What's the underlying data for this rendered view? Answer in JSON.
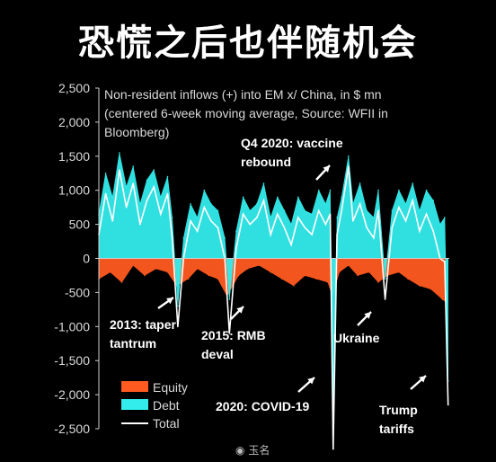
{
  "headline": "恐慌之后也伴随机会",
  "watermark": "玉名",
  "chart_data": {
    "type": "area",
    "title": "Non-resident inflows (+) into EM x/ China, in $ mn",
    "subtitle_lines": [
      "(centered 6-week moving average, Source: WFII in",
      "Bloomberg)"
    ],
    "ylim": [
      -2500,
      2500
    ],
    "yticks": [
      -2500,
      -2000,
      -1500,
      -1000,
      -500,
      0,
      500,
      1000,
      1500,
      2000,
      2500
    ],
    "ytick_labels": [
      "-2,500",
      "-2,000",
      "-1,500",
      "-1,000",
      "-500",
      "0",
      "500",
      "1,000",
      "1,500",
      "2,000",
      "2,500"
    ],
    "grid": false,
    "legend_placement": "bottom-left",
    "series": [
      {
        "name": "Equity",
        "color": "#ff5a1f",
        "kind": "area",
        "x": [
          2010.0,
          2010.5,
          2011.0,
          2011.5,
          2012.0,
          2012.5,
          2013.0,
          2013.4,
          2013.9,
          2014.3,
          2014.8,
          2015.2,
          2015.6,
          2016.1,
          2016.5,
          2017.0,
          2017.5,
          2018.0,
          2018.5,
          2019.0,
          2019.5,
          2020.0,
          2020.2,
          2020.5,
          2020.9,
          2021.3,
          2021.8,
          2022.2,
          2022.6,
          2023.1,
          2023.5,
          2024.0,
          2024.5,
          2025.0,
          2025.2
        ],
        "values": [
          -300,
          -200,
          -350,
          -100,
          -250,
          -150,
          -200,
          -400,
          -300,
          -150,
          -250,
          -300,
          -550,
          -250,
          -150,
          -100,
          -200,
          -300,
          -400,
          -250,
          -300,
          -350,
          -550,
          -200,
          -100,
          -250,
          -200,
          -350,
          -250,
          -200,
          -300,
          -400,
          -450,
          -600,
          -650
        ]
      },
      {
        "name": "Debt",
        "color": "#33ecec",
        "kind": "area",
        "x": [
          2010.0,
          2010.3,
          2010.6,
          2010.9,
          2011.2,
          2011.5,
          2011.8,
          2012.1,
          2012.4,
          2012.7,
          2013.0,
          2013.2,
          2013.45,
          2013.7,
          2014.0,
          2014.3,
          2014.6,
          2014.9,
          2015.2,
          2015.5,
          2015.7,
          2016.0,
          2016.3,
          2016.6,
          2016.9,
          2017.2,
          2017.5,
          2017.8,
          2018.1,
          2018.4,
          2018.7,
          2019.0,
          2019.3,
          2019.6,
          2019.9,
          2020.1,
          2020.23,
          2020.4,
          2020.6,
          2020.9,
          2021.1,
          2021.4,
          2021.7,
          2022.0,
          2022.2,
          2022.5,
          2022.8,
          2023.1,
          2023.4,
          2023.7,
          2024.0,
          2024.3,
          2024.6,
          2024.9,
          2025.1,
          2025.25
        ],
        "values": [
          650,
          1250,
          900,
          1550,
          1050,
          1350,
          800,
          1150,
          1300,
          900,
          1200,
          600,
          -700,
          300,
          800,
          600,
          1000,
          800,
          700,
          300,
          -600,
          400,
          900,
          700,
          800,
          1100,
          600,
          900,
          700,
          500,
          900,
          700,
          650,
          1000,
          800,
          1000,
          -2450,
          600,
          900,
          1500,
          800,
          1100,
          700,
          600,
          1000,
          -300,
          700,
          1000,
          800,
          1100,
          700,
          1000,
          850,
          500,
          600,
          -1800
        ]
      },
      {
        "name": "Total",
        "color": "#ffffff",
        "kind": "line",
        "x": [
          2010.0,
          2010.3,
          2010.6,
          2010.9,
          2011.2,
          2011.5,
          2011.8,
          2012.1,
          2012.4,
          2012.7,
          2013.0,
          2013.2,
          2013.45,
          2013.7,
          2014.0,
          2014.3,
          2014.6,
          2014.9,
          2015.2,
          2015.5,
          2015.7,
          2016.0,
          2016.3,
          2016.6,
          2016.9,
          2017.2,
          2017.5,
          2017.8,
          2018.1,
          2018.4,
          2018.7,
          2019.0,
          2019.3,
          2019.6,
          2019.9,
          2020.1,
          2020.23,
          2020.4,
          2020.6,
          2020.9,
          2021.1,
          2021.4,
          2021.7,
          2022.0,
          2022.2,
          2022.5,
          2022.8,
          2023.1,
          2023.4,
          2023.7,
          2024.0,
          2024.3,
          2024.6,
          2024.9,
          2025.1,
          2025.25
        ],
        "values": [
          350,
          950,
          550,
          1300,
          750,
          1100,
          500,
          850,
          1050,
          650,
          950,
          300,
          -1000,
          0,
          550,
          400,
          750,
          550,
          450,
          0,
          -1100,
          150,
          650,
          500,
          600,
          850,
          350,
          650,
          450,
          200,
          600,
          450,
          350,
          700,
          500,
          650,
          -2800,
          350,
          700,
          1350,
          550,
          800,
          450,
          300,
          700,
          -600,
          450,
          750,
          550,
          850,
          400,
          650,
          400,
          0,
          -50,
          -2150
        ]
      }
    ],
    "annotations": [
      {
        "lines": [
          "Q4 2020: vaccine",
          "rebound"
        ]
      },
      {
        "lines": [
          "2013: taper",
          "tantrum"
        ]
      },
      {
        "lines": [
          "2015: RMB",
          "deval"
        ]
      },
      {
        "lines": [
          "Ukraine"
        ]
      },
      {
        "lines": [
          "2020: COVID-19"
        ]
      },
      {
        "lines": [
          "Trump",
          "tariffs"
        ]
      }
    ]
  }
}
